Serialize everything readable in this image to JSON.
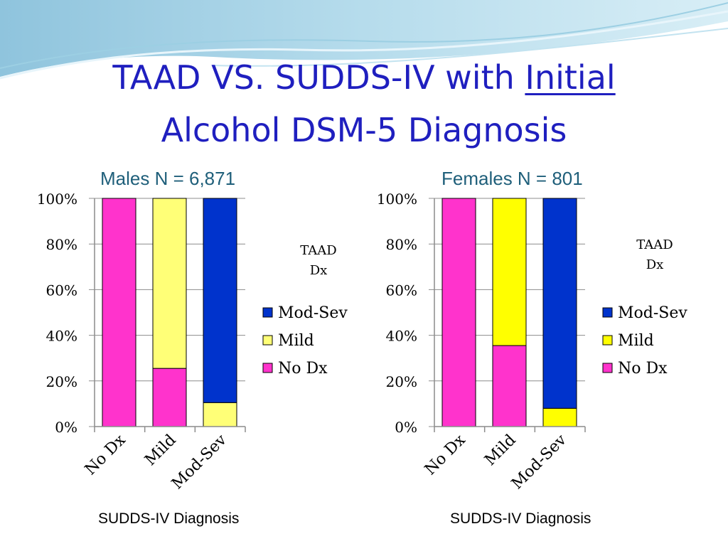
{
  "slide": {
    "title_line1_prefix": "TAAD VS. SUDDS-IV  with ",
    "title_line1_underlined": "Initial",
    "title_line2": "Alcohol DSM-5 Diagnosis"
  },
  "colors": {
    "no_dx": "#ff33cc",
    "mild_males": "#ffff77",
    "mild_females": "#ffff00",
    "mod_sev": "#0033cc",
    "title": "#1f1fbf",
    "subtitle": "#1f5f7a"
  },
  "chart_data": [
    {
      "type": "bar",
      "stacked": true,
      "title": "Males  N = 6,871",
      "xlabel": "SUDDS-IV Diagnosis",
      "categories": [
        "No Dx",
        "Mild",
        "Mod-Sev"
      ],
      "y_ticks": [
        "0%",
        "20%",
        "40%",
        "60%",
        "80%",
        "100%"
      ],
      "ylim": [
        0,
        100
      ],
      "legend_title": [
        "TAAD",
        "Dx"
      ],
      "legend_position": "right",
      "series": [
        {
          "name": "No Dx",
          "values": [
            100,
            25.5,
            0
          ]
        },
        {
          "name": "Mild",
          "values": [
            0,
            74.5,
            10.5
          ]
        },
        {
          "name": "Mod-Sev",
          "values": [
            0,
            0,
            89.5
          ]
        }
      ],
      "legend_entries": [
        "Mod-Sev",
        "Mild",
        "No Dx"
      ]
    },
    {
      "type": "bar",
      "stacked": true,
      "title": "Females  N = 801",
      "xlabel": "SUDDS-IV Diagnosis",
      "categories": [
        "No Dx",
        "Mild",
        "Mod-Sev"
      ],
      "y_ticks": [
        "0%",
        "20%",
        "40%",
        "60%",
        "80%",
        "100%"
      ],
      "ylim": [
        0,
        100
      ],
      "legend_title": [
        "TAAD",
        "Dx"
      ],
      "legend_position": "right",
      "series": [
        {
          "name": "No Dx",
          "values": [
            100,
            35.5,
            0
          ]
        },
        {
          "name": "Mild",
          "values": [
            0,
            64.5,
            8
          ]
        },
        {
          "name": "Mod-Sev",
          "values": [
            0,
            0,
            92
          ]
        }
      ],
      "legend_entries": [
        "Mod-Sev",
        "Mild",
        "No Dx"
      ]
    }
  ]
}
